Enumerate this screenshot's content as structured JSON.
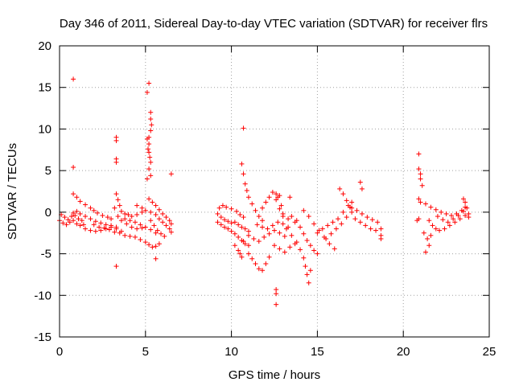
{
  "chart_data": {
    "type": "scatter",
    "title": "Day 346 of 2011, Sidereal Day-to-day VTEC variation (SDTVAR) for receiver flrs",
    "xlabel": "GPS time / hours",
    "ylabel": "SDTVAR / TECUs",
    "xlim": [
      0,
      25
    ],
    "ylim": [
      -15,
      20
    ],
    "xticks": [
      0,
      5,
      10,
      15,
      20,
      25
    ],
    "yticks": [
      -15,
      -10,
      -5,
      0,
      5,
      10,
      15,
      20
    ],
    "xtick_labels": [
      "0",
      "5",
      "10",
      "15",
      "20",
      "25"
    ],
    "ytick_labels": [
      "-15",
      "-10",
      "-5",
      "0",
      "5",
      "10",
      "15",
      "20"
    ],
    "grid": true,
    "marker": "+",
    "color": "#ff0000",
    "series": [
      {
        "name": "SDTVAR",
        "points": [
          [
            0.0,
            -1.0
          ],
          [
            0.2,
            -1.3
          ],
          [
            0.4,
            -1.5
          ],
          [
            0.6,
            -1.2
          ],
          [
            0.8,
            -1.0
          ],
          [
            1.0,
            -1.4
          ],
          [
            1.2,
            -1.6
          ],
          [
            1.4,
            -1.5
          ],
          [
            0.1,
            -0.3
          ],
          [
            0.3,
            -0.6
          ],
          [
            0.5,
            -0.9
          ],
          [
            0.7,
            -0.5
          ],
          [
            0.9,
            -0.4
          ],
          [
            1.1,
            -0.8
          ],
          [
            1.3,
            -1.0
          ],
          [
            0.8,
            2.2
          ],
          [
            1.0,
            1.8
          ],
          [
            1.2,
            1.3
          ],
          [
            1.5,
            0.9
          ],
          [
            1.8,
            0.5
          ],
          [
            2.0,
            0.2
          ],
          [
            2.2,
            -0.1
          ],
          [
            2.5,
            -0.4
          ],
          [
            2.8,
            -0.6
          ],
          [
            3.0,
            -0.8
          ],
          [
            0.8,
            -0.1
          ],
          [
            1.0,
            0.1
          ],
          [
            1.2,
            -0.2
          ],
          [
            1.5,
            -0.5
          ],
          [
            1.8,
            -0.8
          ],
          [
            2.1,
            -1.1
          ],
          [
            2.4,
            -1.3
          ],
          [
            2.7,
            -1.5
          ],
          [
            3.0,
            -1.6
          ],
          [
            3.3,
            -1.8
          ],
          [
            1.5,
            -2.0
          ],
          [
            1.8,
            -2.2
          ],
          [
            2.1,
            -2.3
          ],
          [
            2.4,
            -2.2
          ],
          [
            2.7,
            -2.0
          ],
          [
            3.0,
            -1.8
          ],
          [
            3.3,
            -2.0
          ],
          [
            3.6,
            -2.3
          ],
          [
            2.0,
            -1.5
          ],
          [
            2.3,
            -1.8
          ],
          [
            2.6,
            -1.9
          ],
          [
            2.9,
            -2.1
          ],
          [
            3.2,
            -2.4
          ],
          [
            3.3,
            2.2
          ],
          [
            3.4,
            1.5
          ],
          [
            3.5,
            0.8
          ],
          [
            3.6,
            0.1
          ],
          [
            3.8,
            -0.2
          ],
          [
            4.0,
            -0.3
          ],
          [
            4.2,
            -0.5
          ],
          [
            4.5,
            -0.3
          ],
          [
            4.8,
            0.0
          ],
          [
            3.2,
            0.5
          ],
          [
            3.4,
            -0.5
          ],
          [
            3.6,
            -1.0
          ],
          [
            3.9,
            -1.4
          ],
          [
            4.2,
            -1.8
          ],
          [
            4.5,
            -2.0
          ],
          [
            4.8,
            -1.9
          ],
          [
            3.5,
            -2.5
          ],
          [
            3.8,
            -2.8
          ],
          [
            4.1,
            -2.9
          ],
          [
            4.4,
            -3.0
          ],
          [
            4.7,
            -3.3
          ],
          [
            5.0,
            -3.6
          ],
          [
            5.2,
            -3.9
          ],
          [
            5.4,
            -4.2
          ],
          [
            5.6,
            -4.1
          ],
          [
            5.8,
            -3.8
          ],
          [
            3.8,
            -0.8
          ],
          [
            4.1,
            -1.0
          ],
          [
            4.4,
            -1.2
          ],
          [
            4.7,
            -1.5
          ],
          [
            5.0,
            -1.8
          ],
          [
            5.3,
            -2.1
          ],
          [
            5.6,
            -2.5
          ],
          [
            4.5,
            0.8
          ],
          [
            4.8,
            0.5
          ],
          [
            5.0,
            0.2
          ],
          [
            5.3,
            0.0
          ],
          [
            5.6,
            -0.3
          ],
          [
            5.8,
            -0.8
          ],
          [
            6.0,
            -1.2
          ],
          [
            6.2,
            -1.6
          ],
          [
            6.4,
            -2.0
          ],
          [
            6.5,
            -2.4
          ],
          [
            5.2,
            1.6
          ],
          [
            5.4,
            1.2
          ],
          [
            5.6,
            0.8
          ],
          [
            5.8,
            0.3
          ],
          [
            6.0,
            -0.2
          ],
          [
            6.2,
            -0.6
          ],
          [
            6.4,
            -1.0
          ],
          [
            6.5,
            -1.4
          ],
          [
            5.3,
            -1.0
          ],
          [
            5.5,
            -1.6
          ],
          [
            5.7,
            -2.2
          ],
          [
            5.9,
            -2.6
          ],
          [
            6.1,
            -2.9
          ],
          [
            0.8,
            16.0
          ],
          [
            0.8,
            5.4
          ],
          [
            3.3,
            9.0
          ],
          [
            3.3,
            8.6
          ],
          [
            3.3,
            6.4
          ],
          [
            3.3,
            6.0
          ],
          [
            3.3,
            -6.5
          ],
          [
            5.2,
            15.5
          ],
          [
            5.1,
            14.4
          ],
          [
            5.3,
            12.0
          ],
          [
            5.3,
            11.2
          ],
          [
            5.35,
            10.5
          ],
          [
            5.3,
            9.8
          ],
          [
            5.2,
            9.0
          ],
          [
            5.1,
            8.8
          ],
          [
            5.2,
            8.2
          ],
          [
            5.15,
            7.6
          ],
          [
            5.2,
            7.2
          ],
          [
            5.25,
            6.6
          ],
          [
            5.3,
            6.0
          ],
          [
            5.2,
            5.2
          ],
          [
            5.3,
            4.4
          ],
          [
            5.1,
            4.0
          ],
          [
            5.6,
            -5.6
          ],
          [
            6.5,
            4.6
          ],
          [
            9.2,
            -0.2
          ],
          [
            9.4,
            -0.6
          ],
          [
            9.6,
            -0.9
          ],
          [
            9.8,
            -1.1
          ],
          [
            10.0,
            -1.3
          ],
          [
            10.2,
            -1.2
          ],
          [
            10.4,
            -1.5
          ],
          [
            10.6,
            -1.8
          ],
          [
            10.8,
            -2.0
          ],
          [
            11.0,
            -2.3
          ],
          [
            9.2,
            -1.2
          ],
          [
            9.4,
            -1.5
          ],
          [
            9.6,
            -1.8
          ],
          [
            9.8,
            -2.0
          ],
          [
            10.0,
            -2.3
          ],
          [
            10.2,
            -2.6
          ],
          [
            10.4,
            -3.0
          ],
          [
            10.6,
            -3.4
          ],
          [
            10.8,
            -3.8
          ],
          [
            11.0,
            -4.0
          ],
          [
            9.3,
            0.5
          ],
          [
            9.5,
            0.8
          ],
          [
            9.7,
            0.6
          ],
          [
            10.0,
            0.4
          ],
          [
            10.3,
            0.1
          ],
          [
            10.5,
            -0.3
          ],
          [
            10.7,
            -0.6
          ],
          [
            10.2,
            -4.0
          ],
          [
            10.4,
            -4.6
          ],
          [
            10.5,
            -5.0
          ],
          [
            10.6,
            -5.4
          ],
          [
            10.7,
            -3.5
          ],
          [
            10.6,
            5.8
          ],
          [
            10.7,
            4.6
          ],
          [
            10.8,
            3.4
          ],
          [
            10.9,
            2.6
          ],
          [
            11.0,
            1.8
          ],
          [
            11.2,
            1.0
          ],
          [
            11.4,
            0.2
          ],
          [
            11.6,
            -0.5
          ],
          [
            11.8,
            -1.0
          ],
          [
            11.0,
            -5.0
          ],
          [
            11.2,
            -5.6
          ],
          [
            11.4,
            -6.2
          ],
          [
            11.6,
            -6.8
          ],
          [
            11.8,
            -7.0
          ],
          [
            12.0,
            -6.2
          ],
          [
            12.2,
            -5.4
          ],
          [
            11.0,
            -2.8
          ],
          [
            11.3,
            -3.2
          ],
          [
            11.6,
            -3.5
          ],
          [
            11.9,
            -3.0
          ],
          [
            12.2,
            -2.6
          ],
          [
            12.5,
            -2.2
          ],
          [
            12.8,
            -2.5
          ],
          [
            13.1,
            -2.9
          ],
          [
            11.5,
            -1.5
          ],
          [
            11.8,
            -1.8
          ],
          [
            12.1,
            -2.0
          ],
          [
            12.4,
            -1.6
          ],
          [
            12.7,
            -1.2
          ],
          [
            13.0,
            -1.4
          ],
          [
            13.3,
            -1.8
          ],
          [
            11.8,
            0.5
          ],
          [
            12.0,
            1.2
          ],
          [
            12.2,
            1.8
          ],
          [
            12.4,
            2.4
          ],
          [
            12.6,
            1.5
          ],
          [
            12.8,
            0.4
          ],
          [
            13.0,
            -0.5
          ],
          [
            12.6,
            2.2
          ],
          [
            12.7,
            1.8
          ],
          [
            12.9,
            0.8
          ],
          [
            13.0,
            -0.2
          ],
          [
            13.3,
            -0.8
          ],
          [
            13.5,
            -0.5
          ],
          [
            13.7,
            -1.2
          ],
          [
            12.5,
            -4.0
          ],
          [
            12.8,
            -4.4
          ],
          [
            13.1,
            -4.8
          ],
          [
            13.4,
            -4.2
          ],
          [
            13.7,
            -3.8
          ],
          [
            13.2,
            -2.0
          ],
          [
            13.5,
            -2.8
          ],
          [
            13.8,
            -3.6
          ],
          [
            14.0,
            -4.5
          ],
          [
            14.2,
            -5.5
          ],
          [
            14.3,
            -6.5
          ],
          [
            14.4,
            -7.5
          ],
          [
            14.5,
            -8.5
          ],
          [
            14.6,
            -7.0
          ],
          [
            13.8,
            -1.0
          ],
          [
            14.0,
            -1.8
          ],
          [
            14.2,
            -2.6
          ],
          [
            14.4,
            -3.4
          ],
          [
            14.6,
            -4.0
          ],
          [
            14.8,
            -4.6
          ],
          [
            15.0,
            -5.0
          ],
          [
            14.2,
            0.2
          ],
          [
            14.5,
            -0.5
          ],
          [
            14.8,
            -1.4
          ],
          [
            15.1,
            -2.2
          ],
          [
            15.4,
            -3.0
          ],
          [
            15.7,
            -3.8
          ],
          [
            16.0,
            -4.4
          ],
          [
            15.0,
            -2.5
          ],
          [
            15.3,
            -2.0
          ],
          [
            15.6,
            -1.6
          ],
          [
            15.9,
            -1.2
          ],
          [
            16.2,
            -0.8
          ],
          [
            16.5,
            0.0
          ],
          [
            16.8,
            0.8
          ],
          [
            17.0,
            1.2
          ],
          [
            15.5,
            -3.2
          ],
          [
            15.8,
            -2.6
          ],
          [
            16.1,
            -2.0
          ],
          [
            16.4,
            -1.4
          ],
          [
            16.7,
            -0.6
          ],
          [
            17.0,
            0.0
          ],
          [
            16.3,
            2.8
          ],
          [
            16.5,
            2.2
          ],
          [
            16.7,
            1.4
          ],
          [
            16.9,
            0.6
          ],
          [
            17.0,
            0.5
          ],
          [
            17.3,
            0.2
          ],
          [
            17.6,
            -0.2
          ],
          [
            17.9,
            -0.6
          ],
          [
            18.2,
            -0.9
          ],
          [
            18.5,
            -1.2
          ],
          [
            17.2,
            -0.8
          ],
          [
            17.5,
            -1.2
          ],
          [
            17.8,
            -1.6
          ],
          [
            18.1,
            -2.0
          ],
          [
            18.4,
            -2.2
          ],
          [
            17.5,
            3.6
          ],
          [
            17.6,
            2.8
          ],
          [
            18.7,
            -2.0
          ],
          [
            18.7,
            -2.8
          ],
          [
            18.7,
            -3.2
          ],
          [
            10.7,
            10.1
          ],
          [
            12.6,
            -9.3
          ],
          [
            12.6,
            -9.8
          ],
          [
            12.6,
            -11.1
          ],
          [
            13.4,
            1.8
          ],
          [
            12.8,
            2.0
          ],
          [
            21.0,
            1.2
          ],
          [
            21.3,
            1.0
          ],
          [
            21.6,
            0.6
          ],
          [
            21.9,
            0.3
          ],
          [
            22.2,
            0.0
          ],
          [
            22.5,
            -0.2
          ],
          [
            22.8,
            -0.4
          ],
          [
            23.1,
            -0.2
          ],
          [
            23.4,
            0.2
          ],
          [
            23.6,
            0.6
          ],
          [
            21.5,
            -1.0
          ],
          [
            21.7,
            -1.6
          ],
          [
            21.9,
            -2.0
          ],
          [
            22.1,
            -2.2
          ],
          [
            22.4,
            -2.0
          ],
          [
            22.7,
            -1.6
          ],
          [
            23.0,
            -1.2
          ],
          [
            23.3,
            -0.8
          ],
          [
            23.6,
            -0.4
          ],
          [
            21.2,
            -2.5
          ],
          [
            21.4,
            -3.2
          ],
          [
            21.5,
            -4.0
          ],
          [
            21.3,
            -4.8
          ],
          [
            21.6,
            -2.8
          ],
          [
            22.0,
            -0.5
          ],
          [
            22.3,
            -0.9
          ],
          [
            22.6,
            -1.2
          ],
          [
            22.9,
            -0.8
          ],
          [
            23.2,
            -0.4
          ],
          [
            23.5,
            0.1
          ],
          [
            23.7,
            0.5
          ],
          [
            20.9,
            7.0
          ],
          [
            20.9,
            5.2
          ],
          [
            21.0,
            4.6
          ],
          [
            21.0,
            4.0
          ],
          [
            21.1,
            3.2
          ],
          [
            20.9,
            1.6
          ],
          [
            20.9,
            -0.8
          ],
          [
            20.8,
            -1.0
          ],
          [
            23.5,
            1.6
          ],
          [
            23.6,
            1.2
          ],
          [
            23.8,
            -0.2
          ],
          [
            23.8,
            -0.6
          ]
        ]
      }
    ]
  }
}
